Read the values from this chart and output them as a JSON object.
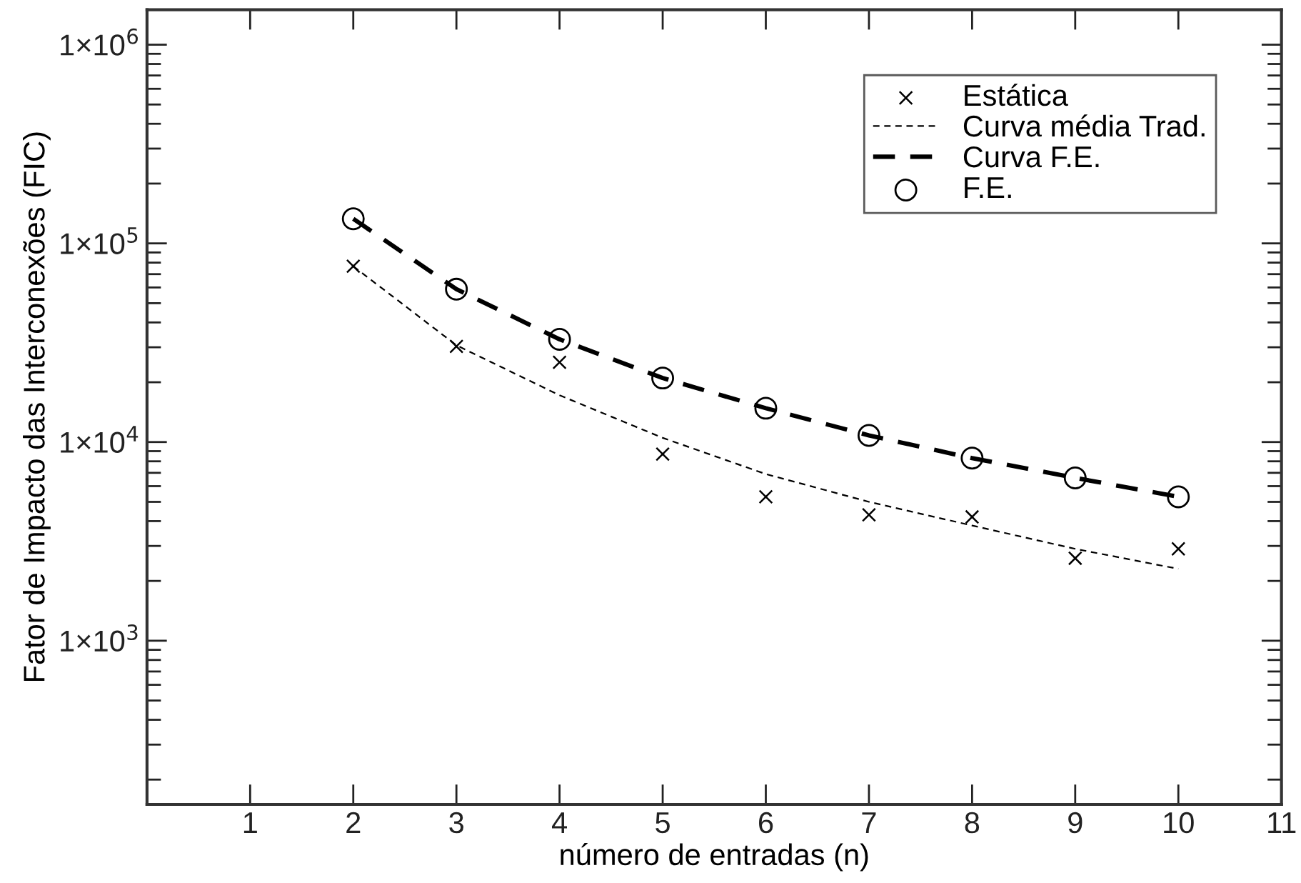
{
  "chart_data": {
    "type": "scatter",
    "xlabel": "número de entradas (n)",
    "ylabel": "Fator de Impacto das Interconexões (FIC)",
    "x": [
      2,
      3,
      4,
      5,
      6,
      7,
      8,
      9,
      10
    ],
    "series": [
      {
        "name": "Estática",
        "marker": "cross",
        "color": "#000000",
        "values": [
          76700,
          30300,
          25200,
          8700,
          5300,
          4300,
          4200,
          2600,
          2900
        ]
      },
      {
        "name": "Curva média Trad.",
        "type": "line",
        "line_style": "dashed",
        "marker": "none",
        "color": "#000000",
        "values": [
          76700,
          30700,
          17200,
          10500,
          6900,
          5000,
          3800,
          2900,
          2300
        ]
      },
      {
        "name": "Curva F.E.",
        "type": "line",
        "line_style": "dashed",
        "marker": "none",
        "color": "#000000",
        "values": [
          133000,
          58800,
          32900,
          21000,
          14800,
          10800,
          8300,
          6600,
          5300
        ]
      },
      {
        "name": "F.E.",
        "marker": "circle",
        "color": "#000000",
        "values": [
          133000,
          58800,
          32900,
          21000,
          14800,
          10800,
          8300,
          6600,
          5300
        ]
      }
    ],
    "log": "y",
    "xlim": [
      0,
      11
    ],
    "xticks": [
      1,
      2,
      3,
      4,
      5,
      6,
      7,
      8,
      9,
      10,
      11
    ],
    "ylim": [
      150,
      1500000
    ],
    "yticks": [
      {
        "value": 1000,
        "label": "1×10$^{3}$"
      },
      {
        "value": 10000,
        "label": "1×10$^{4}$"
      },
      {
        "value": 100000,
        "label": "1×10$^{5}$"
      },
      {
        "value": 1000000,
        "label": "1×10$^{6}$"
      }
    ],
    "legend": "top right",
    "grid": false
  }
}
